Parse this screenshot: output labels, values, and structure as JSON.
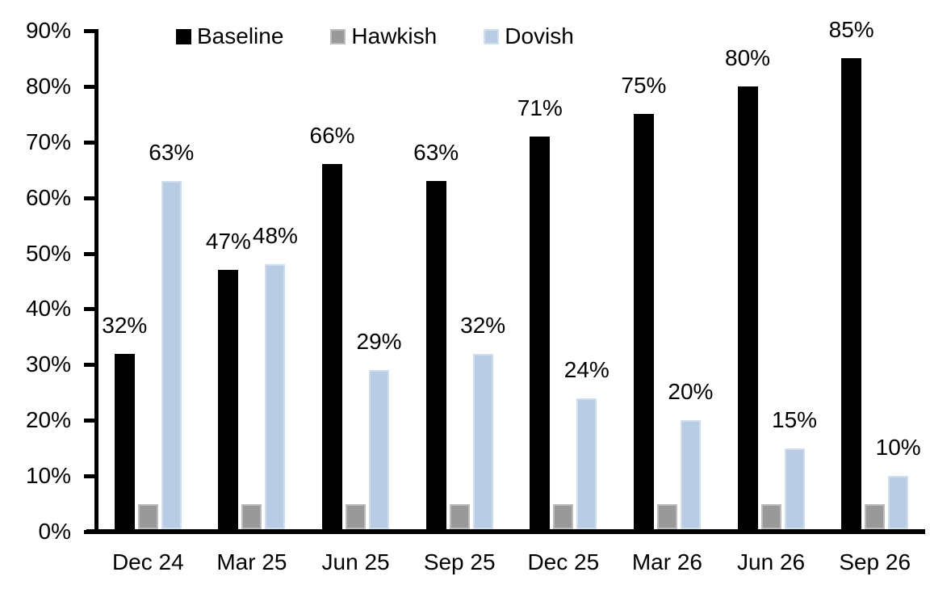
{
  "chart_data": {
    "type": "bar",
    "title": "",
    "categories": [
      "Dec 24",
      "Mar 25",
      "Jun 25",
      "Sep 25",
      "Dec 25",
      "Mar 26",
      "Jun 26",
      "Sep 26"
    ],
    "series": [
      {
        "name": "Baseline",
        "color": "#000000",
        "values": [
          32,
          47,
          66,
          63,
          71,
          75,
          80,
          85
        ],
        "labels": [
          "32%",
          "47%",
          "66%",
          "63%",
          "71%",
          "75%",
          "80%",
          "85%"
        ]
      },
      {
        "name": "Hawkish",
        "color": "#999999",
        "values": [
          5,
          5,
          5,
          5,
          5,
          5,
          5,
          5
        ],
        "labels": [
          "",
          "",
          "",
          "",
          "",
          "",
          "",
          ""
        ]
      },
      {
        "name": "Dovish",
        "color": "#B8CCE4",
        "values": [
          63,
          48,
          29,
          32,
          24,
          20,
          15,
          10
        ],
        "labels": [
          "63%",
          "48%",
          "29%",
          "32%",
          "24%",
          "20%",
          "15%",
          "10%"
        ]
      }
    ],
    "xlabel": "",
    "ylabel": "",
    "ylim": [
      0,
      90
    ],
    "yticks": [
      0,
      10,
      20,
      30,
      40,
      50,
      60,
      70,
      80,
      90
    ],
    "ytick_labels": [
      "0%",
      "10%",
      "20%",
      "30%",
      "40%",
      "50%",
      "60%",
      "70%",
      "80%",
      "90%"
    ],
    "grid": false,
    "legend_position": "top-inside",
    "axis_color": "#000000",
    "background_color": "#FFFFFF",
    "data_label_format": "percent"
  }
}
